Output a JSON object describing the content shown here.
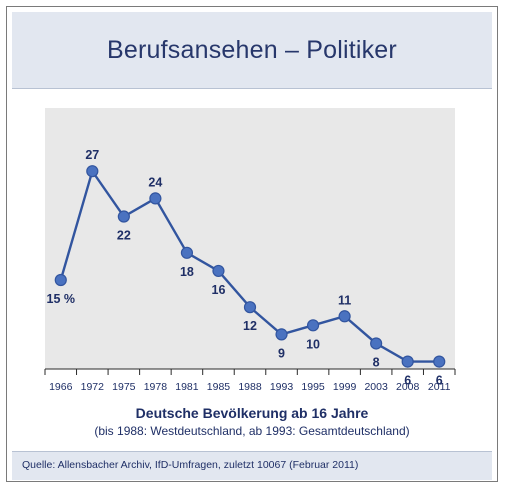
{
  "title": "Berufsansehen – Politiker",
  "subtitle": "Deutsche Bevölkerung ab 16 Jahre",
  "note": "(bis 1988: Westdeutschland, ab 1993: Gesamtdeutschland)",
  "source": "Quelle: Allensbacher Archiv, IfD-Umfragen, zuletzt 10067 (Februar 2011)",
  "colors": {
    "line": "#32559f",
    "marker": "#4a72c0",
    "plot_background": "#e8e8e8",
    "band": "#e2e7f0",
    "text": "#1f2f66"
  },
  "chart_data": {
    "type": "line",
    "categories": [
      "1966",
      "1972",
      "1975",
      "1978",
      "1981",
      "1985",
      "1988",
      "1993",
      "1995",
      "1999",
      "2003",
      "2008",
      "2011"
    ],
    "values": [
      15,
      27,
      22,
      24,
      18,
      16,
      12,
      9,
      10,
      11,
      8,
      6,
      6
    ],
    "data_labels": [
      "15 %",
      "27",
      "22",
      "24",
      "18",
      "16",
      "12",
      "9",
      "10",
      "11",
      "8",
      "6",
      "6"
    ],
    "title": "Berufsansehen – Politiker",
    "xlabel": "Deutsche Bevölkerung ab 16 Jahre",
    "ylabel": "",
    "ylim": [
      0,
      30
    ],
    "grid": false,
    "legend": "none"
  }
}
